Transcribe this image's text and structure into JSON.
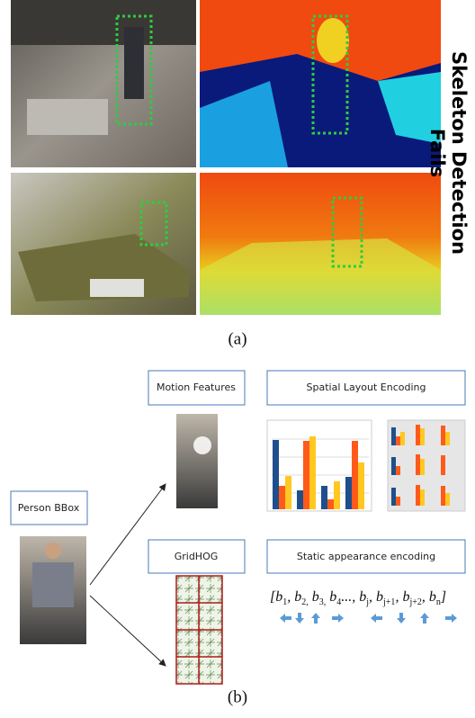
{
  "figure_a": {
    "side_text_line1": "Skeleton Detection",
    "side_text_line2": "Fails",
    "caption": "(a)"
  },
  "figure_b": {
    "person_box": "Person BBox",
    "motion_box": "Motion Features",
    "spatial_box": "Spatial Layout Encoding",
    "gridhog_box": "GridHOG",
    "static_box": "Static appearance encoding",
    "formula": [
      {
        "text": "[b"
      },
      {
        "sub": "1"
      },
      {
        "text": ", b"
      },
      {
        "sub": "2,"
      },
      {
        "text": " b"
      },
      {
        "sub": "3,"
      },
      {
        "text": " b"
      },
      {
        "sub": "4"
      },
      {
        "text": "..., b"
      },
      {
        "sub": "j"
      },
      {
        "text": ", b"
      },
      {
        "sub": "j+1"
      },
      {
        "text": ", b"
      },
      {
        "sub": "j+2"
      },
      {
        "text": ", b"
      },
      {
        "sub": "n"
      },
      {
        "text": "]"
      }
    ],
    "caption": "(b)"
  }
}
